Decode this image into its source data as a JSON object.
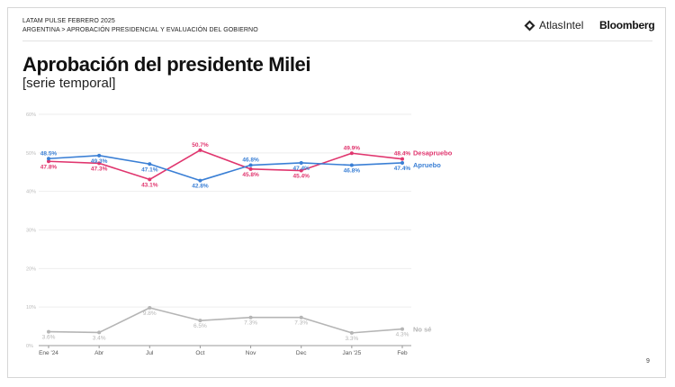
{
  "header": {
    "line1": "LATAM PULSE  FEBRERO 2025",
    "line2": "ARGENTINA > APROBACIÓN PRESIDENCIAL Y EVALUACIÓN DEL GOBIERNO",
    "logo_atlas": "AtlasIntel",
    "logo_bloomberg": "Bloomberg"
  },
  "title": "Aprobación del presidente Milei",
  "subtitle": "[serie temporal]",
  "page_number": "9",
  "colors": {
    "approve": "#3a7fd5",
    "disapprove": "#e0356e",
    "dontknow": "#b5b5b5",
    "grid": "#eeeeee",
    "axis": "#999999",
    "tick": "#bbbbbb"
  },
  "chart_data": {
    "type": "line",
    "title": "Aprobación del presidente Milei",
    "subtitle": "[serie temporal]",
    "xlabel": "",
    "ylabel": "",
    "categories": [
      "Ene '24",
      "Abr",
      "Jul",
      "Oct",
      "Nov",
      "Dec",
      "Jan '25",
      "Feb"
    ],
    "ylim": [
      0,
      60
    ],
    "yticks": [
      0,
      10,
      20,
      30,
      40,
      50,
      60
    ],
    "ytick_labels": [
      "0%",
      "10%",
      "20%",
      "30%",
      "40%",
      "50%",
      "60%"
    ],
    "grid": true,
    "legend": "inline labels at end of each line (right)",
    "series": [
      {
        "name": "Desapruebo",
        "key": "disapprove",
        "values": [
          47.8,
          47.3,
          43.1,
          50.7,
          45.8,
          45.4,
          49.9,
          48.4
        ],
        "labels": [
          "47.8%",
          "47.3%",
          "43.1%",
          "50.7%",
          "45.8%",
          "45.4%",
          "49.9%",
          "48.4%"
        ],
        "label_pos": [
          "below",
          "below",
          "below",
          "above",
          "below",
          "below",
          "above",
          "above"
        ]
      },
      {
        "name": "Apruebo",
        "key": "approve",
        "values": [
          48.5,
          49.3,
          47.1,
          42.8,
          46.8,
          47.4,
          46.8,
          47.4
        ],
        "labels": [
          "48.5%",
          "49.3%",
          "47.1%",
          "42.8%",
          "46.8%",
          "47.4%",
          "46.8%",
          "47.4%"
        ],
        "label_pos": [
          "above",
          "below",
          "below",
          "below",
          "above",
          "below",
          "below",
          "below"
        ]
      },
      {
        "name": "No sé",
        "key": "dontknow",
        "values": [
          3.6,
          3.4,
          9.8,
          6.5,
          7.3,
          7.3,
          3.3,
          4.3
        ],
        "labels": [
          "3.6%",
          "3.4%",
          "9.8%",
          "6.5%",
          "7.3%",
          "7.3%",
          "3.3%",
          "4.3%"
        ],
        "label_pos": [
          "below",
          "below",
          "below",
          "below",
          "below",
          "below",
          "below",
          "below"
        ]
      }
    ]
  }
}
